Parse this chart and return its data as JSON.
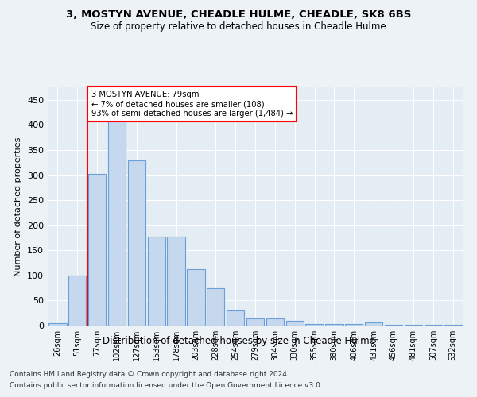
{
  "title1": "3, MOSTYN AVENUE, CHEADLE HULME, CHEADLE, SK8 6BS",
  "title2": "Size of property relative to detached houses in Cheadle Hulme",
  "xlabel": "Distribution of detached houses by size in Cheadle Hulme",
  "ylabel": "Number of detached properties",
  "bar_labels": [
    "26sqm",
    "51sqm",
    "77sqm",
    "102sqm",
    "127sqm",
    "153sqm",
    "178sqm",
    "203sqm",
    "228sqm",
    "254sqm",
    "279sqm",
    "304sqm",
    "330sqm",
    "355sqm",
    "380sqm",
    "406sqm",
    "431sqm",
    "456sqm",
    "481sqm",
    "507sqm",
    "532sqm"
  ],
  "bar_values": [
    5,
    100,
    302,
    415,
    330,
    178,
    178,
    112,
    75,
    30,
    15,
    15,
    10,
    3,
    3,
    3,
    7,
    1,
    2,
    1,
    2
  ],
  "bar_color": "#c5d8ed",
  "bar_edge_color": "#6a9fd8",
  "annotation_title": "3 MOSTYN AVENUE: 79sqm",
  "annotation_line1": "← 7% of detached houses are smaller (108)",
  "annotation_line2": "93% of semi-detached houses are larger (1,484) →",
  "annotation_box_color": "white",
  "annotation_box_edge_color": "red",
  "vline_color": "red",
  "vline_x": 1.5,
  "footer1": "Contains HM Land Registry data © Crown copyright and database right 2024.",
  "footer2": "Contains public sector information licensed under the Open Government Licence v3.0.",
  "bg_color": "#edf2f7",
  "plot_bg_color": "#e4ecf4",
  "grid_color": "#ffffff",
  "ylim": [
    0,
    475
  ],
  "yticks": [
    0,
    50,
    100,
    150,
    200,
    250,
    300,
    350,
    400,
    450
  ]
}
